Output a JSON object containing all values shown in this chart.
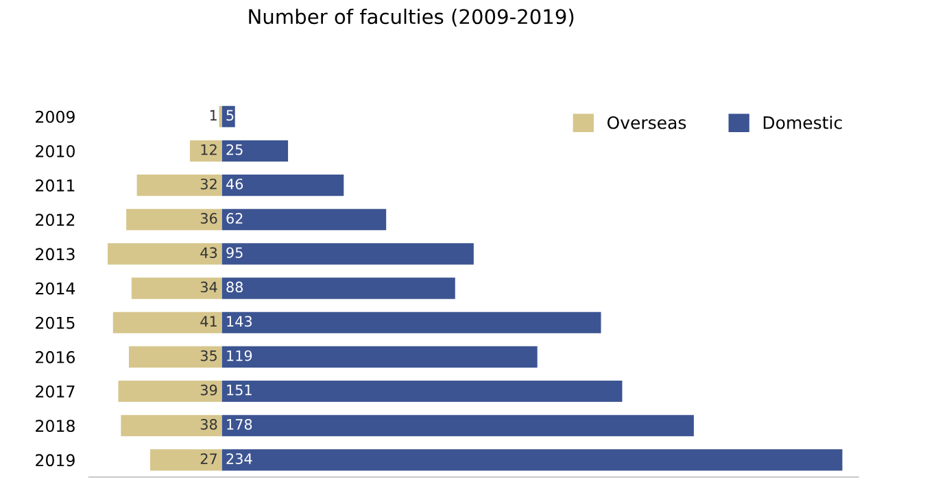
{
  "chart_data": [
    {
      "type": "bar",
      "orientation": "horizontal",
      "categories": [
        "2009",
        "2010",
        "2011",
        "2012",
        "2013",
        "2014",
        "2015",
        "2016",
        "2017",
        "2018",
        "2019"
      ],
      "series": [
        {
          "name": "Overseas",
          "color": "#d6c68c",
          "values": [
            1,
            12,
            32,
            36,
            43,
            34,
            41,
            35,
            39,
            38,
            27
          ]
        }
      ],
      "xlim": [
        50,
        0
      ],
      "tick_labels": "y",
      "data_labels": true
    },
    {
      "type": "bar",
      "orientation": "horizontal",
      "title": "Number of faculties (2009-2019)",
      "categories": [
        "2009",
        "2010",
        "2011",
        "2012",
        "2013",
        "2014",
        "2015",
        "2016",
        "2017",
        "2018",
        "2019"
      ],
      "series": [
        {
          "name": "Domestic",
          "color": "#3c5491",
          "values": [
            5,
            25,
            46,
            62,
            95,
            88,
            143,
            119,
            151,
            178,
            234
          ]
        }
      ],
      "xlim": [
        0,
        240
      ],
      "tick_labels": false,
      "data_labels": true,
      "legend": "top right"
    }
  ]
}
